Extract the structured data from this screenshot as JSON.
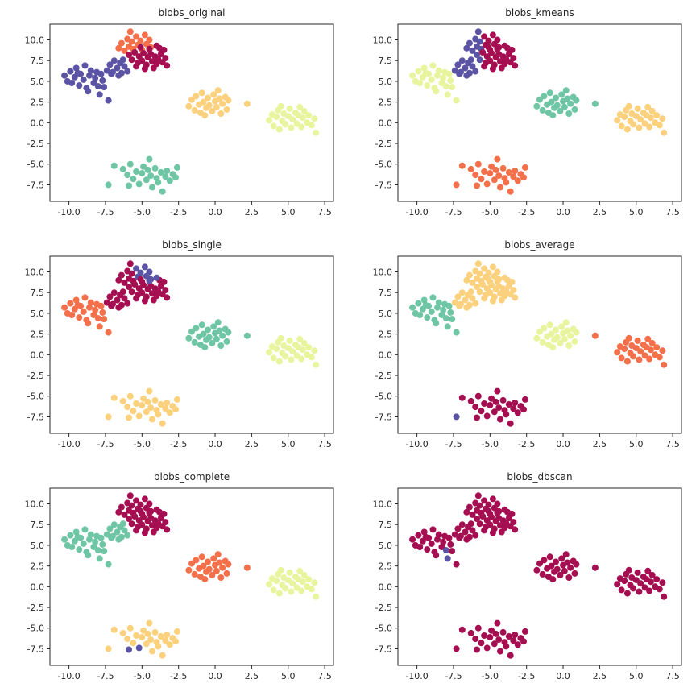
{
  "figure": {
    "background": "#ffffff",
    "text_color": "#262626"
  },
  "chart_data": {
    "type": "scatter",
    "layout": {
      "rows": 3,
      "cols": 2,
      "grid": false,
      "legend": "none"
    },
    "xlim": [
      -11.3,
      8.1
    ],
    "ylim": [
      -9.5,
      11.9
    ],
    "x_ticks": {
      "values": [
        -10.0,
        -7.5,
        -5.0,
        -2.5,
        0.0,
        2.5,
        5.0,
        7.5
      ],
      "labels": [
        "-10.0",
        "-7.5",
        "-5.0",
        "-2.5",
        "0.0",
        "2.5",
        "5.0",
        "7.5"
      ]
    },
    "y_ticks": {
      "values": [
        -7.5,
        -5.0,
        -2.5,
        0.0,
        2.5,
        5.0,
        7.5,
        10.0
      ],
      "labels": [
        "-7.5",
        "-5.0",
        "-2.5",
        "0.0",
        "2.5",
        "5.0",
        "7.5",
        "10.0"
      ]
    },
    "palette": [
      "#a50f51",
      "#f3704b",
      "#fcd17e",
      "#e8f59e",
      "#6ec6a5",
      "#5b53a4"
    ],
    "palette_names": [
      "crimson",
      "orange",
      "yellow",
      "light-yellow-green",
      "teal",
      "purple"
    ],
    "points": [
      [
        -10.3,
        5.7
      ],
      [
        -10.1,
        5.0
      ],
      [
        -9.9,
        6.2
      ],
      [
        -9.8,
        4.8
      ],
      [
        -9.6,
        5.5
      ],
      [
        -9.5,
        6.6
      ],
      [
        -9.3,
        4.5
      ],
      [
        -9.2,
        5.9
      ],
      [
        -9.0,
        5.2
      ],
      [
        -8.9,
        6.9
      ],
      [
        -8.8,
        4.2
      ],
      [
        -8.6,
        5.7
      ],
      [
        -8.5,
        6.3
      ],
      [
        -8.3,
        4.8
      ],
      [
        -8.2,
        5.4
      ],
      [
        -8.1,
        6.1
      ],
      [
        -8.0,
        4.4
      ],
      [
        -7.8,
        5.9
      ],
      [
        -7.7,
        5.1
      ],
      [
        -7.6,
        4.3
      ],
      [
        -8.7,
        3.8
      ],
      [
        -9.4,
        6.0
      ],
      [
        -7.9,
        3.4
      ],
      [
        -7.3,
        2.7
      ],
      [
        -6.6,
        9.0
      ],
      [
        -6.4,
        9.6
      ],
      [
        -6.2,
        8.7
      ],
      [
        -6.0,
        10.1
      ],
      [
        -5.9,
        9.2
      ],
      [
        -5.7,
        9.8
      ],
      [
        -5.6,
        8.9
      ],
      [
        -5.4,
        10.4
      ],
      [
        -5.3,
        9.4
      ],
      [
        -5.1,
        9.9
      ],
      [
        -5.0,
        8.8
      ],
      [
        -4.8,
        10.6
      ],
      [
        -4.7,
        9.5
      ],
      [
        -4.5,
        10.0
      ],
      [
        -4.4,
        9.1
      ],
      [
        -5.8,
        11.0
      ],
      [
        -5.9,
        8.2
      ],
      [
        -5.7,
        7.6
      ],
      [
        -5.5,
        8.5
      ],
      [
        -5.3,
        7.2
      ],
      [
        -5.2,
        8.0
      ],
      [
        -5.0,
        7.5
      ],
      [
        -4.9,
        8.4
      ],
      [
        -4.7,
        7.0
      ],
      [
        -4.6,
        7.9
      ],
      [
        -4.4,
        8.3
      ],
      [
        -4.3,
        7.4
      ],
      [
        -4.1,
        8.0
      ],
      [
        -4.0,
        7.1
      ],
      [
        -3.9,
        7.7
      ],
      [
        -3.7,
        8.3
      ],
      [
        -3.6,
        7.3
      ],
      [
        -3.4,
        7.8
      ],
      [
        -3.3,
        6.9
      ],
      [
        -4.2,
        6.6
      ],
      [
        -4.8,
        6.5
      ],
      [
        -5.4,
        6.8
      ],
      [
        -3.8,
        9.0
      ],
      [
        -4.5,
        8.9
      ],
      [
        -5.1,
        9.1
      ],
      [
        -3.5,
        8.8
      ],
      [
        -4.0,
        9.3
      ],
      [
        -7.4,
        6.3
      ],
      [
        -7.2,
        7.0
      ],
      [
        -7.0,
        6.1
      ],
      [
        -6.9,
        7.5
      ],
      [
        -6.7,
        6.6
      ],
      [
        -6.5,
        7.2
      ],
      [
        -6.4,
        6.0
      ],
      [
        -6.2,
        6.8
      ],
      [
        -6.0,
        6.2
      ],
      [
        -6.6,
        5.7
      ],
      [
        -7.1,
        5.9
      ],
      [
        -6.3,
        7.6
      ],
      [
        -1.8,
        2.0
      ],
      [
        -1.6,
        2.8
      ],
      [
        -1.4,
        1.5
      ],
      [
        -1.3,
        3.2
      ],
      [
        -1.1,
        2.2
      ],
      [
        -1.0,
        1.2
      ],
      [
        -0.9,
        3.6
      ],
      [
        -0.8,
        2.5
      ],
      [
        -0.6,
        1.8
      ],
      [
        -0.5,
        3.0
      ],
      [
        -0.4,
        2.1
      ],
      [
        -0.2,
        1.4
      ],
      [
        -0.1,
        3.4
      ],
      [
        0.0,
        2.6
      ],
      [
        0.1,
        1.9
      ],
      [
        0.3,
        2.9
      ],
      [
        0.4,
        1.1
      ],
      [
        0.5,
        2.3
      ],
      [
        0.7,
        3.1
      ],
      [
        0.8,
        1.6
      ],
      [
        0.9,
        2.7
      ],
      [
        -0.7,
        0.9
      ],
      [
        0.2,
        3.9
      ],
      [
        2.2,
        2.3
      ],
      [
        3.7,
        0.3
      ],
      [
        3.9,
        1.0
      ],
      [
        4.0,
        -0.4
      ],
      [
        4.2,
        0.7
      ],
      [
        4.3,
        1.5
      ],
      [
        4.4,
        -0.8
      ],
      [
        4.6,
        0.2
      ],
      [
        4.7,
        1.1
      ],
      [
        4.8,
        -0.2
      ],
      [
        5.0,
        0.8
      ],
      [
        5.1,
        1.7
      ],
      [
        5.2,
        -0.6
      ],
      [
        5.3,
        0.4
      ],
      [
        5.5,
        1.2
      ],
      [
        5.6,
        -0.1
      ],
      [
        5.7,
        0.9
      ],
      [
        5.9,
        -0.5
      ],
      [
        6.0,
        0.6
      ],
      [
        6.1,
        1.4
      ],
      [
        6.3,
        0.0
      ],
      [
        6.4,
        0.9
      ],
      [
        6.6,
        -0.3
      ],
      [
        6.8,
        0.5
      ],
      [
        4.5,
        2.0
      ],
      [
        5.8,
        1.9
      ],
      [
        6.9,
        -1.2
      ],
      [
        -6.9,
        -5.2
      ],
      [
        -6.3,
        -5.6
      ],
      [
        -6.0,
        -6.3
      ],
      [
        -5.8,
        -5.0
      ],
      [
        -5.6,
        -6.8
      ],
      [
        -5.4,
        -5.9
      ],
      [
        -5.2,
        -7.4
      ],
      [
        -5.0,
        -6.1
      ],
      [
        -4.9,
        -5.3
      ],
      [
        -4.7,
        -6.9
      ],
      [
        -4.6,
        -5.7
      ],
      [
        -4.4,
        -6.4
      ],
      [
        -4.3,
        -7.8
      ],
      [
        -4.1,
        -5.5
      ],
      [
        -4.0,
        -6.7
      ],
      [
        -3.9,
        -7.2
      ],
      [
        -3.7,
        -6.0
      ],
      [
        -3.6,
        -8.3
      ],
      [
        -3.4,
        -6.5
      ],
      [
        -3.3,
        -5.8
      ],
      [
        -3.1,
        -7.0
      ],
      [
        -2.9,
        -6.2
      ],
      [
        -2.7,
        -6.6
      ],
      [
        -4.5,
        -4.4
      ],
      [
        -5.9,
        -7.6
      ],
      [
        -7.3,
        -7.5
      ],
      [
        -2.6,
        -5.4
      ]
    ],
    "subplots": [
      {
        "title": "blobs_original",
        "labels_rle": [
          [
            24,
            5
          ],
          [
            16,
            1
          ],
          [
            26,
            0
          ],
          [
            12,
            5
          ],
          [
            24,
            2
          ],
          [
            26,
            3
          ],
          [
            27,
            4
          ]
        ]
      },
      {
        "title": "blobs_kmeans",
        "labels_rle": [
          [
            24,
            3
          ],
          [
            7,
            5
          ],
          [
            8,
            0
          ],
          [
            3,
            5
          ],
          [
            24,
            0
          ],
          [
            12,
            5
          ],
          [
            24,
            4
          ],
          [
            26,
            2
          ],
          [
            27,
            1
          ]
        ]
      },
      {
        "title": "blobs_single",
        "labels_rle": [
          [
            24,
            1
          ],
          [
            7,
            0
          ],
          [
            3,
            5
          ],
          [
            1,
            0
          ],
          [
            4,
            5
          ],
          [
            23,
            0
          ],
          [
            1,
            5
          ],
          [
            2,
            0
          ],
          [
            1,
            5
          ],
          [
            12,
            0
          ],
          [
            24,
            4
          ],
          [
            26,
            3
          ],
          [
            27,
            2
          ]
        ]
      },
      {
        "title": "blobs_average",
        "labels_rle": [
          [
            24,
            4
          ],
          [
            54,
            2
          ],
          [
            23,
            3
          ],
          [
            27,
            1
          ],
          [
            25,
            0
          ],
          [
            1,
            5
          ],
          [
            1,
            0
          ]
        ]
      },
      {
        "title": "blobs_complete",
        "labels_rle": [
          [
            24,
            4
          ],
          [
            42,
            0
          ],
          [
            12,
            4
          ],
          [
            24,
            1
          ],
          [
            26,
            3
          ],
          [
            6,
            2
          ],
          [
            1,
            5
          ],
          [
            17,
            2
          ],
          [
            1,
            5
          ],
          [
            2,
            2
          ]
        ]
      },
      {
        "title": "blobs_dbscan",
        "labels_rle": [
          [
            16,
            0
          ],
          [
            1,
            5
          ],
          [
            5,
            0
          ],
          [
            1,
            5
          ],
          [
            132,
            0
          ]
        ]
      }
    ]
  }
}
